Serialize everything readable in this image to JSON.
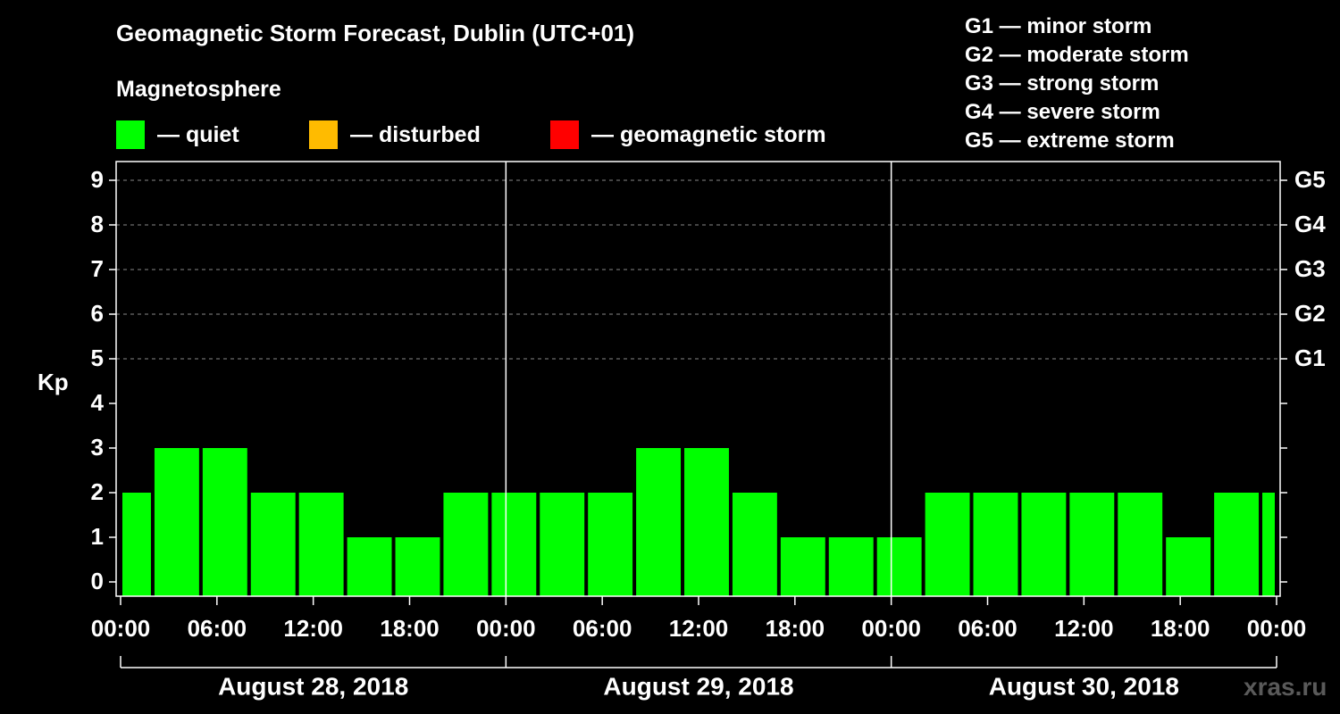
{
  "header": {
    "title": "Geomagnetic Storm Forecast, Dublin (UTC+01)",
    "magnetosphere_label": "Magnetosphere"
  },
  "legend": [
    {
      "label": "— quiet",
      "color": "#00ff00"
    },
    {
      "label": "— disturbed",
      "color": "#ffbb00"
    },
    {
      "label": "— geomagnetic storm",
      "color": "#ff0000"
    }
  ],
  "storm_levels": [
    "G1 — minor storm",
    "G2 — moderate storm",
    "G3 — strong storm",
    "G4 — severe storm",
    "G5 — extreme storm"
  ],
  "watermark": "xras.ru",
  "chart_data": {
    "type": "bar",
    "title": "Geomagnetic Storm Forecast, Dublin (UTC+01)",
    "ylabel": "Kp",
    "xlabel": "",
    "ylim": [
      0,
      9
    ],
    "yticks": [
      0,
      1,
      2,
      3,
      4,
      5,
      6,
      7,
      8,
      9
    ],
    "right_axis_labels": [
      {
        "kp": 5,
        "label": "G1"
      },
      {
        "kp": 6,
        "label": "G2"
      },
      {
        "kp": 7,
        "label": "G3"
      },
      {
        "kp": 8,
        "label": "G4"
      },
      {
        "kp": 9,
        "label": "G5"
      }
    ],
    "x_range_hours": [
      0,
      72
    ],
    "xtick_hours": [
      0,
      6,
      12,
      18,
      24,
      30,
      36,
      42,
      48,
      54,
      60,
      66,
      72
    ],
    "xtick_labels": [
      "00:00",
      "06:00",
      "12:00",
      "18:00",
      "00:00",
      "06:00",
      "12:00",
      "18:00",
      "00:00",
      "06:00",
      "12:00",
      "18:00",
      "00:00"
    ],
    "day_separators_hours": [
      24,
      48
    ],
    "days": [
      {
        "label": "August 28, 2018",
        "start_hour": 0,
        "end_hour": 24
      },
      {
        "label": "August 29, 2018",
        "start_hour": 24,
        "end_hour": 48
      },
      {
        "label": "August 30, 2018",
        "start_hour": 48,
        "end_hour": 72
      }
    ],
    "bars": [
      {
        "start": 0,
        "end": 2,
        "kp": 2
      },
      {
        "start": 2,
        "end": 5,
        "kp": 3
      },
      {
        "start": 5,
        "end": 8,
        "kp": 3
      },
      {
        "start": 8,
        "end": 11,
        "kp": 2
      },
      {
        "start": 11,
        "end": 14,
        "kp": 2
      },
      {
        "start": 14,
        "end": 17,
        "kp": 1
      },
      {
        "start": 17,
        "end": 20,
        "kp": 1
      },
      {
        "start": 20,
        "end": 23,
        "kp": 2
      },
      {
        "start": 23,
        "end": 26,
        "kp": 2
      },
      {
        "start": 26,
        "end": 29,
        "kp": 2
      },
      {
        "start": 29,
        "end": 32,
        "kp": 2
      },
      {
        "start": 32,
        "end": 35,
        "kp": 3
      },
      {
        "start": 35,
        "end": 38,
        "kp": 3
      },
      {
        "start": 38,
        "end": 41,
        "kp": 2
      },
      {
        "start": 41,
        "end": 44,
        "kp": 1
      },
      {
        "start": 44,
        "end": 47,
        "kp": 1
      },
      {
        "start": 47,
        "end": 50,
        "kp": 1
      },
      {
        "start": 50,
        "end": 53,
        "kp": 2
      },
      {
        "start": 53,
        "end": 56,
        "kp": 2
      },
      {
        "start": 56,
        "end": 59,
        "kp": 2
      },
      {
        "start": 59,
        "end": 62,
        "kp": 2
      },
      {
        "start": 62,
        "end": 65,
        "kp": 2
      },
      {
        "start": 65,
        "end": 68,
        "kp": 1
      },
      {
        "start": 68,
        "end": 71,
        "kp": 2
      },
      {
        "start": 71,
        "end": 72,
        "kp": 2
      }
    ],
    "bar_color": "#00ff00"
  }
}
